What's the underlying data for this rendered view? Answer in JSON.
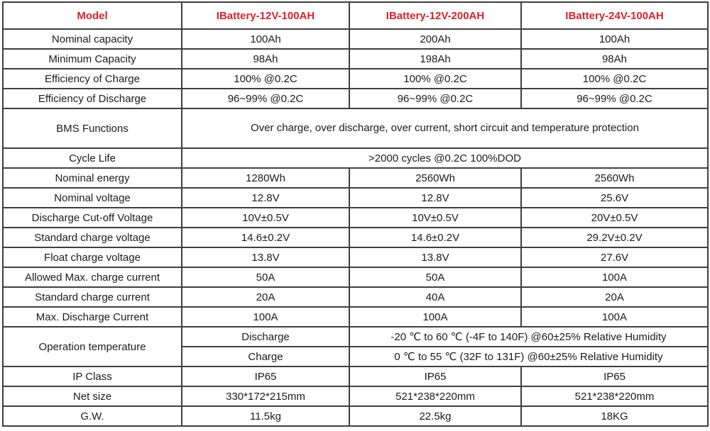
{
  "colors": {
    "header_red": "#d8232a",
    "body_text": "#1c1c1c",
    "border": "#3f3f3f",
    "background": "#ffffff"
  },
  "header": {
    "model": "Model",
    "battery1": "IBattery-12V-100AH",
    "battery2": "IBattery-12V-200AH",
    "battery3": "IBattery-24V-100AH"
  },
  "rows": {
    "nominal_capacity": {
      "label": "Nominal capacity",
      "v1": "100Ah",
      "v2": "200Ah",
      "v3": "100Ah"
    },
    "minimum_capacity": {
      "label": "Minimum Capacity",
      "v1": "98Ah",
      "v2": "198Ah",
      "v3": "98Ah"
    },
    "efficiency_of_charge": {
      "label": "Efficiency of Charge",
      "v1": "100% @0.2C",
      "v2": "100% @0.2C",
      "v3": "100% @0.2C"
    },
    "efficiency_of_discharge": {
      "label": "Efficiency of Discharge",
      "v1": "96~99% @0.2C",
      "v2": "96~99% @0.2C",
      "v3": "96~99% @0.2C"
    },
    "bms_functions": {
      "label": "BMS Functions",
      "value": "Over charge, over discharge, over current, short circuit\nand temperature protection"
    },
    "cycle_life": {
      "label": "Cycle Life",
      "value": ">2000 cycles @0.2C 100%DOD"
    },
    "nominal_energy": {
      "label": "Nominal energy",
      "v1": "1280Wh",
      "v2": "2560Wh",
      "v3": "2560Wh"
    },
    "nominal_voltage": {
      "label": "Nominal voltage",
      "v1": "12.8V",
      "v2": "12.8V",
      "v3": "25.6V"
    },
    "discharge_cutoff_voltage": {
      "label": "Discharge Cut-off Voltage",
      "v1": "10V±0.5V",
      "v2": "10V±0.5V",
      "v3": "20V±0.5V"
    },
    "standard_charge_voltage": {
      "label": "Standard charge voltage",
      "v1": "14.6±0.2V",
      "v2": "14.6±0.2V",
      "v3": "29.2V±0.2V"
    },
    "float_charge_voltage": {
      "label": "Float charge voltage",
      "v1": "13.8V",
      "v2": "13.8V",
      "v3": "27.6V"
    },
    "allowed_max_charge_current": {
      "label": "Allowed Max. charge current",
      "v1": "50A",
      "v2": "50A",
      "v3": "100A"
    },
    "standard_charge_current": {
      "label": "Standard charge current",
      "v1": "20A",
      "v2": "40A",
      "v3": "20A"
    },
    "max_discharge_current": {
      "label": "Max. Discharge Current",
      "v1": "100A",
      "v2": "100A",
      "v3": "100A"
    },
    "operation_temperature": {
      "label": "Operation temperature",
      "discharge_label": "Discharge",
      "discharge_value": "-20 ℃ to 60 ℃ (-4F to 140F) @60±25% Relative Humidity",
      "charge_label": "Charge",
      "charge_value": "0 ℃ to 55 ℃ (32F to 131F) @60±25% Relative Humidity"
    },
    "ip_class": {
      "label": "IP Class",
      "v1": "IP65",
      "v2": "IP65",
      "v3": "IP65"
    },
    "net_size": {
      "label": "Net size",
      "v1": "330*172*215mm",
      "v2": "521*238*220mm",
      "v3": "521*238*220mm"
    },
    "gross_weight": {
      "label": "G.W.",
      "v1": "11.5kg",
      "v2": "22.5kg",
      "v3": "18KG"
    }
  }
}
